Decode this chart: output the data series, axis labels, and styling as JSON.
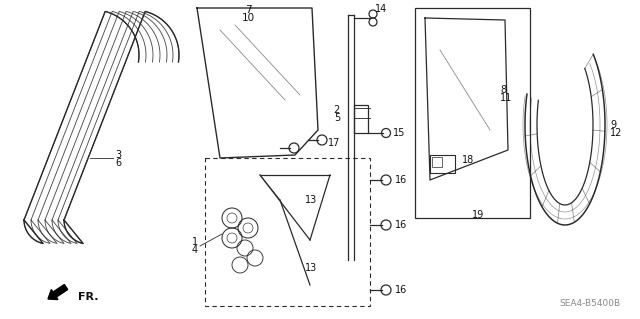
{
  "bg_color": "#ffffff",
  "line_color": "#2a2a2a",
  "text_color": "#111111",
  "code": "SEA4-B5400B",
  "figsize": [
    6.4,
    3.19
  ],
  "dpi": 100
}
